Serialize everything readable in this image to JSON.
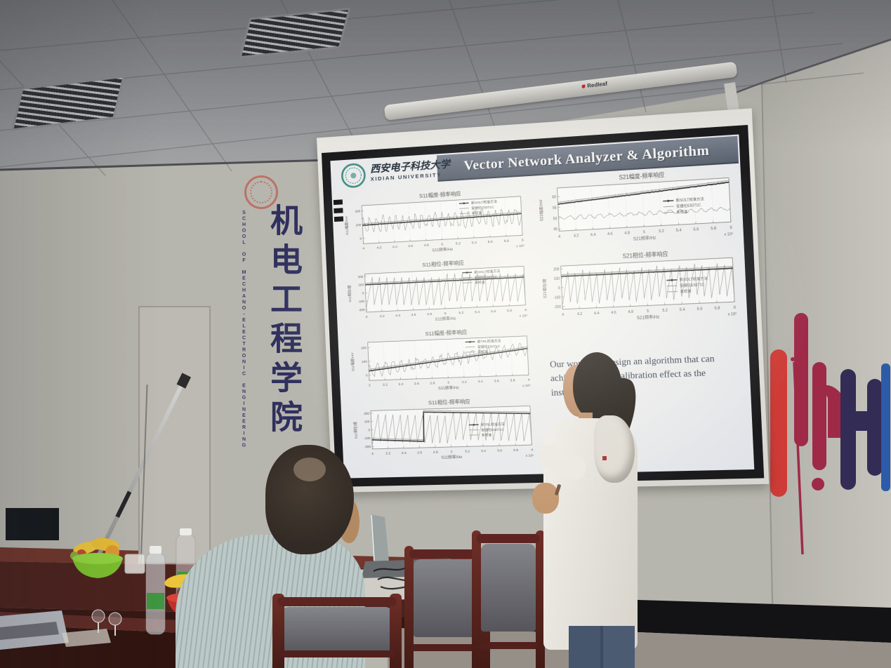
{
  "slide": {
    "title": "Vector Network Analyzer & Algorithm",
    "logo": {
      "cn": "西安电子科技大学",
      "en": "XIDIAN UNIVERSITY"
    },
    "body_text": "Our work is to design an algorithm that can achieve the same calibration effect as the instrument.",
    "header_color": "#5c6470"
  },
  "projector": {
    "brand": "Redleaf"
  },
  "wall": {
    "cn_vertical": "机电工程学院",
    "en_vertical": "SCHOOL OF MECHANO-ELECTRONIC ENGINEERING",
    "text_color": "#30305e"
  },
  "wall_art_colors": [
    "#cf3b36",
    "#9e2a48",
    "#332c55",
    "#2d5ba8"
  ],
  "chart_data": [
    {
      "type": "line",
      "title": "S11幅度-频率响应",
      "xlabel": "S11频率/Hz",
      "ylabel": "S11幅度/mV",
      "x_ticks": [
        "4",
        "4.2",
        "4.4",
        "4.6",
        "4.8",
        "5",
        "5.2",
        "5.4",
        "5.6",
        "5.8",
        "6"
      ],
      "x_exp": "x 10⁹",
      "y_ticks": [
        "0",
        "100",
        "200"
      ],
      "ylim": [
        -40,
        240
      ],
      "legend": [
        "新SOLT校准方法",
        "安捷伦E5071C",
        "未校准"
      ],
      "legend_pos": "tr",
      "bold": {
        "kind": "rise",
        "a": 95,
        "b": 115
      },
      "thin": {
        "kind": "wave",
        "center": 100,
        "amp": 70,
        "cycles": 24
      }
    },
    {
      "type": "line",
      "title": "S11相位-频率响应",
      "xlabel": "S11频率/Hz",
      "ylabel": "S11相位/度",
      "x_ticks": [
        "4",
        "4.2",
        "4.4",
        "4.6",
        "4.8",
        "5",
        "5.2",
        "5.4",
        "5.6",
        "5.8",
        "6"
      ],
      "x_exp": "x 10⁹",
      "y_ticks": [
        "-200",
        "-100",
        "0",
        "100",
        "200"
      ],
      "ylim": [
        -230,
        230
      ],
      "legend": [
        "新SOLT校准方法",
        "安捷伦E5071C",
        "未校准"
      ],
      "legend_pos": "tr",
      "bold": {
        "kind": "flat",
        "a": 100
      },
      "thin": {
        "kind": "saw",
        "amp": 190,
        "cycles": 21
      }
    },
    {
      "type": "line",
      "title": "S11幅度-频率响应",
      "xlabel": "S11频率/Hz",
      "ylabel": "S11幅度/mV",
      "x_ticks": [
        "2",
        "2.2",
        "2.4",
        "2.6",
        "2.8",
        "3",
        "3.2",
        "3.4",
        "3.6",
        "3.8",
        "4"
      ],
      "x_exp": "x 10⁹",
      "y_ticks": [
        "0",
        "100",
        "200"
      ],
      "ylim": [
        -40,
        240
      ],
      "legend": [
        "新TRL校准方法",
        "安捷伦E5071C",
        "未校准"
      ],
      "legend_pos": "tr",
      "bold": {
        "kind": "rise",
        "a": 30,
        "b": 150
      },
      "thin": {
        "kind": "wave",
        "center": 0,
        "amp": 55,
        "cycles": 20,
        "follow": 1
      }
    },
    {
      "type": "line",
      "title": "S11相位-频率响应",
      "xlabel": "S11频率/Hz",
      "ylabel": "S11相位/度",
      "x_ticks": [
        "2",
        "2.2",
        "2.4",
        "2.6",
        "2.8",
        "3",
        "3.2",
        "3.4",
        "3.6",
        "3.8",
        "4"
      ],
      "x_exp": "x 10⁹",
      "y_ticks": [
        "-200",
        "-100",
        "0",
        "100",
        "200"
      ],
      "ylim": [
        -230,
        230
      ],
      "legend": [
        "新TRL校准方法",
        "安捷伦E5071C",
        "未校准"
      ],
      "legend_pos": "mr",
      "bold": {
        "kind": "step",
        "a": -120,
        "b": -155,
        "xs": 0.33,
        "c": 195,
        "d": 140
      },
      "thin": {
        "kind": "saw",
        "amp": 190,
        "cycles": 21
      }
    },
    {
      "type": "line",
      "title": "S21幅度-频率响应",
      "xlabel": "S21频率/Hz",
      "ylabel": "S21幅度/mV",
      "x_ticks": [
        "4",
        "4.2",
        "4.4",
        "4.6",
        "4.8",
        "5",
        "5.2",
        "5.4",
        "5.6",
        "5.8",
        "6"
      ],
      "x_exp": "x 10⁹",
      "y_ticks": [
        "45",
        "50",
        "55",
        "60"
      ],
      "ylim": [
        44,
        64
      ],
      "legend": [
        "新SOLT校准方法",
        "安捷伦E5071C",
        "未校准"
      ],
      "legend_pos": "mr",
      "bold": {
        "kind": "rise",
        "a": 56.5,
        "b": 62
      },
      "thin": {
        "kind": "wave",
        "center": 50,
        "amp": 1.1,
        "cycles": 17
      }
    },
    {
      "type": "line",
      "title": "S21相位-频率响应",
      "xlabel": "S21频率/Hz",
      "ylabel": "S21相位/度",
      "x_ticks": [
        "4",
        "4.2",
        "4.4",
        "4.6",
        "4.8",
        "5",
        "5.2",
        "5.4",
        "5.6",
        "5.8",
        "6"
      ],
      "x_exp": "x 10⁹",
      "y_ticks": [
        "-200",
        "-100",
        "0",
        "100",
        "200"
      ],
      "ylim": [
        -230,
        230
      ],
      "legend": [
        "新SOLT校准方法",
        "安捷伦E5071C",
        "未校准"
      ],
      "legend_pos": "mr",
      "bold": {
        "kind": "flat",
        "a": 120
      },
      "thin": {
        "kind": "saw",
        "amp": 190,
        "cycles": 23
      }
    }
  ]
}
